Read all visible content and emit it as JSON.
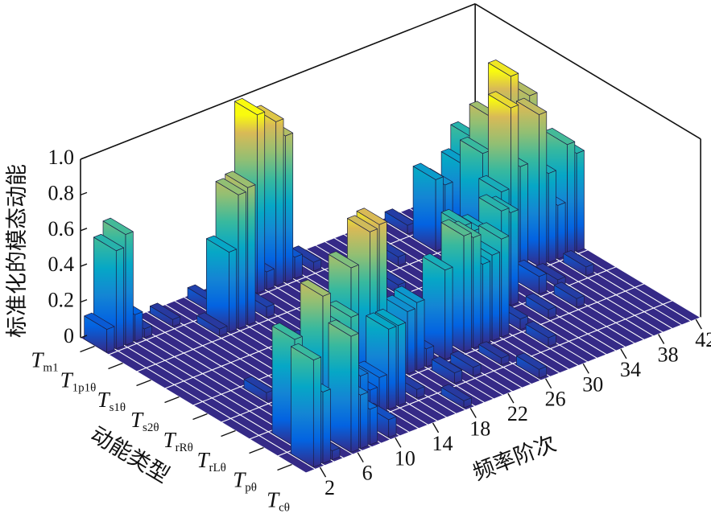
{
  "chart_data": {
    "type": "bar3d",
    "zlabel": "标准化的模态动能",
    "xlabel": "频率阶次",
    "ylabel": "动能类型",
    "colormap": "parula",
    "x": [
      1,
      2,
      3,
      4,
      5,
      6,
      7,
      8,
      9,
      10,
      11,
      12,
      13,
      14,
      15,
      16,
      17,
      18,
      19,
      20,
      21,
      22,
      23,
      24,
      25,
      26,
      27,
      28,
      29,
      30,
      31,
      32,
      33,
      34,
      35,
      36,
      37,
      38,
      39,
      40,
      41,
      42
    ],
    "xticks": [
      2,
      6,
      10,
      14,
      18,
      22,
      26,
      30,
      34,
      38,
      42
    ],
    "y_categories": [
      {
        "symbol": "T",
        "subscript": "m1"
      },
      {
        "symbol": "T",
        "subscript": "1p1θ"
      },
      {
        "symbol": "T",
        "subscript": "s1θ"
      },
      {
        "symbol": "T",
        "subscript": "s2θ"
      },
      {
        "symbol": "T",
        "subscript": "rRθ"
      },
      {
        "symbol": "T",
        "subscript": "rLθ"
      },
      {
        "symbol": "T",
        "subscript": "pθ"
      },
      {
        "symbol": "T",
        "subscript": "cθ"
      }
    ],
    "zlim": [
      0,
      1
    ],
    "zticks": [
      0,
      0.2,
      0.4,
      0.6,
      0.8,
      {
        "value": 1,
        "label": "1.0"
      }
    ],
    "values": [
      [
        0.13,
        0.55,
        0.62,
        0.15,
        0.05,
        0,
        0,
        0.04,
        0,
        0,
        0,
        0.06,
        0,
        0.05,
        0,
        0,
        1.0,
        0.1,
        0.92,
        0.82,
        0.12,
        0,
        0.05,
        0,
        0,
        0,
        0,
        0,
        0,
        0,
        0,
        0,
        0.05,
        0,
        0,
        0,
        0,
        0,
        0,
        0,
        0,
        0
      ],
      [
        0,
        0,
        0,
        0,
        0,
        0,
        0,
        0,
        0,
        0.04,
        0.45,
        0.75,
        0.77,
        0,
        0.06,
        0,
        0,
        0,
        0,
        0,
        0,
        0,
        0,
        0.05,
        0,
        0,
        0,
        0,
        0.05,
        0,
        0,
        0,
        0.4,
        0.35,
        0,
        0.42,
        0.55,
        0,
        0,
        0,
        0,
        0
      ],
      [
        0,
        0,
        0,
        0,
        0,
        0,
        0,
        0,
        0,
        0,
        0,
        0,
        0,
        0,
        0,
        0,
        0,
        0,
        0,
        0,
        0,
        0,
        0,
        0,
        0,
        0.05,
        0,
        0,
        0,
        0,
        0,
        0,
        0,
        0,
        0.6,
        0.78,
        0.65,
        0.97,
        0.5,
        0.82,
        0.06,
        0
      ],
      [
        0,
        0,
        0,
        0,
        0,
        0,
        0,
        0,
        0,
        0,
        0,
        0,
        0,
        0.05,
        0,
        0,
        0,
        0,
        0,
        0,
        0,
        0,
        0,
        0,
        0,
        0,
        0,
        0,
        0,
        0,
        0,
        0,
        0,
        0.5,
        0.95,
        0.6,
        0,
        0.85,
        0.5,
        0.3,
        0.62,
        0.55
      ],
      [
        0,
        0,
        0,
        0,
        0,
        0.05,
        0,
        0,
        0.04,
        0,
        0,
        0,
        0.06,
        0,
        0,
        0,
        0,
        0,
        0,
        0.1,
        0,
        0,
        0,
        0,
        0,
        0,
        0.55,
        0.5,
        0.48,
        0.4,
        0.55,
        0.52,
        0,
        0,
        0.1,
        0,
        0.04,
        0,
        0,
        0.05,
        0,
        0
      ],
      [
        0,
        0,
        0,
        0,
        0,
        0,
        0,
        0.05,
        0,
        0,
        0,
        0.72,
        0,
        0.88,
        0.9,
        0.3,
        0.28,
        0.35,
        0.38,
        0.1,
        0,
        0.5,
        0,
        0.65,
        0.62,
        0.45,
        0.48,
        0.55,
        0,
        0.06,
        0,
        0,
        0.05,
        0,
        0,
        0.05,
        0,
        0,
        0,
        0,
        0,
        0
      ],
      [
        0,
        0,
        0.6,
        0.05,
        0.08,
        0.78,
        0.6,
        0.1,
        0.6,
        0.25,
        0.15,
        0.2,
        0.45,
        0.45,
        0,
        0.05,
        0,
        0,
        0,
        0.06,
        0,
        0.05,
        0,
        0,
        0.04,
        0,
        0,
        0,
        0,
        0.05,
        0,
        0,
        0,
        0,
        0,
        0,
        0,
        0,
        0,
        0,
        0,
        0
      ],
      [
        0,
        0.6,
        0.4,
        0.05,
        0,
        0.65,
        0.3,
        0.2,
        0,
        0.1,
        0,
        0,
        0,
        0,
        0,
        0,
        0,
        0.04,
        0,
        0,
        0,
        0,
        0,
        0,
        0,
        0.05,
        0,
        0,
        0,
        0,
        0,
        0,
        0,
        0,
        0,
        0,
        0,
        0,
        0,
        0,
        0,
        0
      ]
    ]
  }
}
